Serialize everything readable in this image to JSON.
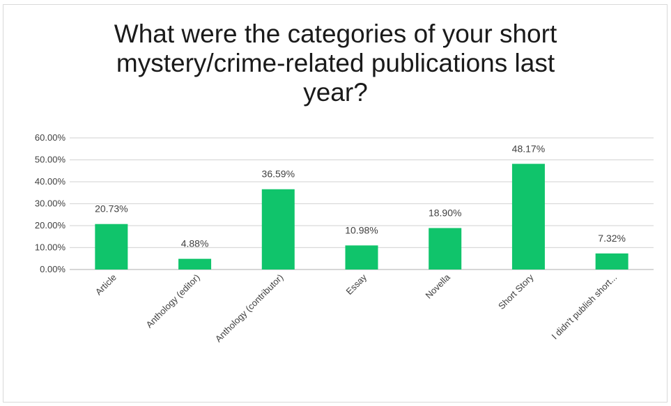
{
  "chart_data": {
    "type": "bar",
    "title_lines": [
      "What were the categories of your short",
      "mystery/crime-related publications last",
      "year?"
    ],
    "categories": [
      "Article",
      "Anthology (editor)",
      "Anthology (contributor)",
      "Essay",
      "Novella",
      "Short Story",
      "I didn't publish short..."
    ],
    "values": [
      20.73,
      4.88,
      36.59,
      10.98,
      18.9,
      48.17,
      7.32
    ],
    "data_labels": [
      "20.73%",
      "4.88%",
      "36.59%",
      "10.98%",
      "18.90%",
      "48.17%",
      "7.32%"
    ],
    "ylim": [
      0,
      60
    ],
    "yticks": [
      0,
      10,
      20,
      30,
      40,
      50,
      60
    ],
    "ytick_labels": [
      "0.00%",
      "10.00%",
      "20.00%",
      "30.00%",
      "40.00%",
      "50.00%",
      "60.00%"
    ],
    "grid": true,
    "bar_color": "#10c46b"
  }
}
